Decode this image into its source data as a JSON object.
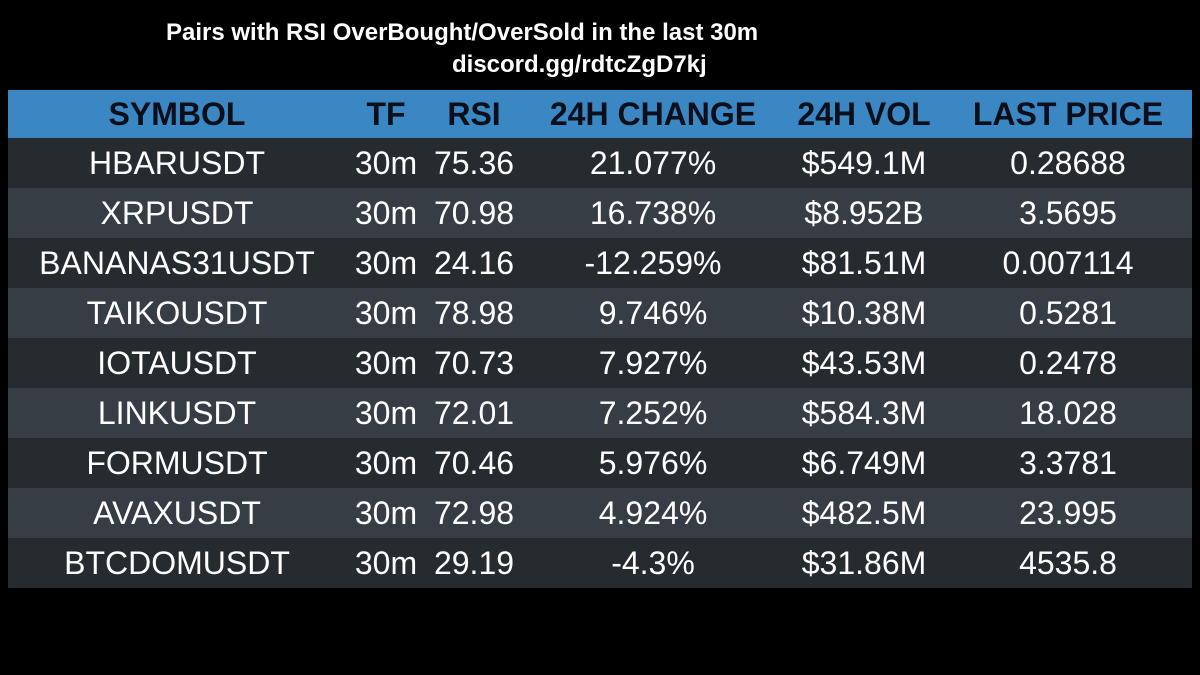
{
  "header": {
    "title": "Pairs with RSI OverBought/OverSold in the last 30m",
    "subtitle": "discord.gg/rdtcZgD7kj"
  },
  "table": {
    "columns": [
      "SYMBOL",
      "TF",
      "RSI",
      "24H CHANGE",
      "24H VOL",
      "LAST PRICE"
    ],
    "rows": [
      [
        "HBARUSDT",
        "30m",
        "75.36",
        "21.077%",
        "$549.1M",
        "0.28688"
      ],
      [
        "XRPUSDT",
        "30m",
        "70.98",
        "16.738%",
        "$8.952B",
        "3.5695"
      ],
      [
        "BANANAS31USDT",
        "30m",
        "24.16",
        "-12.259%",
        "$81.51M",
        "0.007114"
      ],
      [
        "TAIKOUSDT",
        "30m",
        "78.98",
        "9.746%",
        "$10.38M",
        "0.5281"
      ],
      [
        "IOTAUSDT",
        "30m",
        "70.73",
        "7.927%",
        "$43.53M",
        "0.2478"
      ],
      [
        "LINKUSDT",
        "30m",
        "72.01",
        "7.252%",
        "$584.3M",
        "18.028"
      ],
      [
        "FORMUSDT",
        "30m",
        "70.46",
        "5.976%",
        "$6.749M",
        "3.3781"
      ],
      [
        "AVAXUSDT",
        "30m",
        "72.98",
        "4.924%",
        "$482.5M",
        "23.995"
      ],
      [
        "BTCDOMUSDT",
        "30m",
        "29.19",
        "-4.3%",
        "$31.86M",
        "4535.8"
      ]
    ]
  },
  "colors": {
    "background": "#000000",
    "header_bg": "#3a87c4",
    "header_text": "#0a0f1a",
    "row_dark": "#262b30",
    "row_light": "#373d44",
    "text": "#ffffff"
  }
}
